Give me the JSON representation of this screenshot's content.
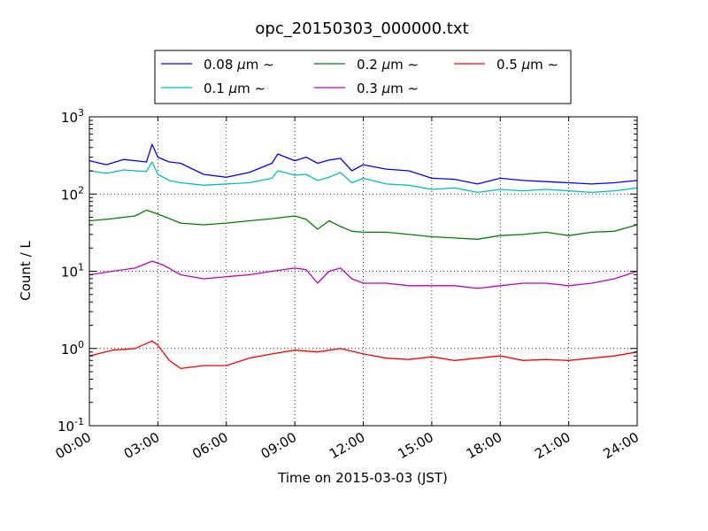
{
  "chart_data": {
    "type": "line",
    "title": "opc_20150303_000000.txt",
    "xlabel": "Time on 2015-03-03 (JST)",
    "ylabel": "Count / L",
    "y_scale": "log",
    "xlim": [
      "00:00",
      "24:00"
    ],
    "ylim": [
      0.1,
      1000
    ],
    "x_ticks": [
      "00:00",
      "03:00",
      "06:00",
      "09:00",
      "12:00",
      "15:00",
      "18:00",
      "21:00",
      "24:00"
    ],
    "y_ticks": [
      {
        "base": "10",
        "exp": "-1"
      },
      {
        "base": "10",
        "exp": "0"
      },
      {
        "base": "10",
        "exp": "1"
      },
      {
        "base": "10",
        "exp": "2"
      },
      {
        "base": "10",
        "exp": "3"
      }
    ],
    "grid": true,
    "legend_position": "top-center",
    "legend_unit": "μm",
    "legend_tilde": "∼",
    "series": [
      {
        "name": "0.08",
        "color": "#0000ff",
        "x": [
          "00:00",
          "00:45",
          "01:30",
          "02:30",
          "02:45",
          "03:00",
          "03:30",
          "04:00",
          "05:00",
          "06:00",
          "07:00",
          "08:00",
          "08:15",
          "09:00",
          "09:30",
          "10:00",
          "10:30",
          "11:00",
          "11:30",
          "12:00",
          "13:00",
          "14:00",
          "15:00",
          "16:00",
          "17:00",
          "18:00",
          "19:00",
          "20:00",
          "21:00",
          "22:00",
          "23:00",
          "24:00"
        ],
        "values": [
          270,
          240,
          280,
          260,
          440,
          300,
          260,
          250,
          180,
          165,
          190,
          250,
          330,
          270,
          300,
          250,
          275,
          290,
          200,
          240,
          210,
          200,
          160,
          155,
          135,
          160,
          150,
          145,
          140,
          135,
          140,
          150
        ]
      },
      {
        "name": "0.1",
        "color": "#00bfbf",
        "x": [
          "00:00",
          "00:45",
          "01:30",
          "02:30",
          "02:45",
          "03:00",
          "03:30",
          "04:00",
          "05:00",
          "06:00",
          "07:00",
          "08:00",
          "08:15",
          "09:00",
          "09:30",
          "10:00",
          "10:30",
          "11:00",
          "11:30",
          "12:00",
          "13:00",
          "14:00",
          "15:00",
          "16:00",
          "17:00",
          "18:00",
          "19:00",
          "20:00",
          "21:00",
          "22:00",
          "23:00",
          "24:00"
        ],
        "values": [
          200,
          185,
          205,
          195,
          260,
          180,
          150,
          140,
          130,
          135,
          140,
          160,
          200,
          175,
          180,
          150,
          165,
          190,
          140,
          160,
          135,
          130,
          115,
          120,
          105,
          115,
          110,
          115,
          110,
          105,
          110,
          120
        ]
      },
      {
        "name": "0.2",
        "color": "#008000",
        "x": [
          "00:00",
          "01:00",
          "02:00",
          "02:30",
          "03:00",
          "04:00",
          "05:00",
          "06:00",
          "07:00",
          "08:00",
          "09:00",
          "09:30",
          "10:00",
          "10:30",
          "11:00",
          "11:30",
          "12:00",
          "13:00",
          "14:00",
          "15:00",
          "16:00",
          "17:00",
          "18:00",
          "19:00",
          "20:00",
          "21:00",
          "22:00",
          "23:00",
          "24:00"
        ],
        "values": [
          45,
          48,
          52,
          62,
          55,
          42,
          40,
          42,
          45,
          48,
          52,
          47,
          35,
          45,
          38,
          33,
          32,
          32,
          30,
          28,
          27,
          26,
          29,
          30,
          32,
          29,
          32,
          33,
          40
        ]
      },
      {
        "name": "0.3",
        "color": "#bf00bf",
        "x": [
          "00:00",
          "01:00",
          "02:00",
          "02:45",
          "03:15",
          "04:00",
          "05:00",
          "06:00",
          "07:00",
          "08:00",
          "09:00",
          "09:30",
          "10:00",
          "10:30",
          "11:00",
          "11:30",
          "12:00",
          "13:00",
          "14:00",
          "15:00",
          "16:00",
          "17:00",
          "18:00",
          "19:00",
          "20:00",
          "21:00",
          "22:00",
          "23:00",
          "24:00"
        ],
        "values": [
          9,
          10,
          11,
          13.5,
          12,
          9,
          8,
          8.5,
          9,
          10,
          11,
          10.5,
          7,
          10,
          11,
          8,
          7,
          7,
          6.5,
          6.5,
          6.5,
          6,
          6.5,
          7,
          7,
          6.5,
          7,
          8,
          10
        ]
      },
      {
        "name": "0.5",
        "color": "#ff0000",
        "x": [
          "00:00",
          "01:00",
          "02:00",
          "02:45",
          "03:00",
          "03:30",
          "04:00",
          "05:00",
          "06:00",
          "07:00",
          "08:00",
          "09:00",
          "10:00",
          "11:00",
          "12:00",
          "13:00",
          "14:00",
          "15:00",
          "16:00",
          "17:00",
          "18:00",
          "19:00",
          "20:00",
          "21:00",
          "22:00",
          "23:00",
          "24:00"
        ],
        "values": [
          0.8,
          0.95,
          1.0,
          1.25,
          1.1,
          0.7,
          0.55,
          0.6,
          0.6,
          0.75,
          0.85,
          0.95,
          0.9,
          1.0,
          0.85,
          0.75,
          0.72,
          0.78,
          0.7,
          0.75,
          0.8,
          0.7,
          0.72,
          0.7,
          0.75,
          0.8,
          0.9
        ]
      }
    ]
  }
}
